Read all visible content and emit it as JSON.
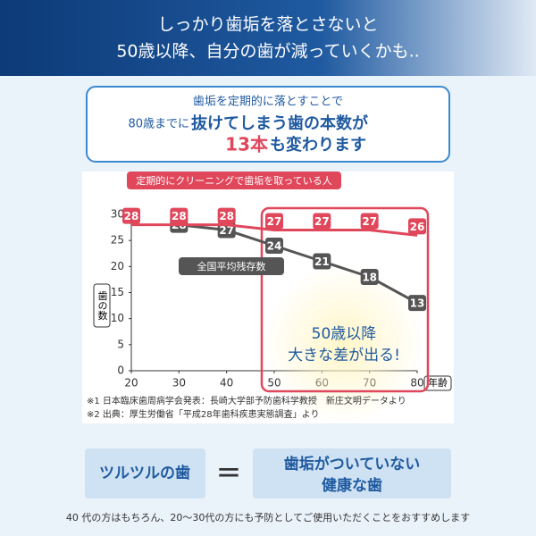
{
  "header": {
    "line1": "しっかり歯垢を落とさないと",
    "line2": "50歳以降、自分の歯が減っていくかも.."
  },
  "callout": {
    "line1": "歯垢を定期的に落とすことで",
    "line2a": "80歳までに",
    "line2b": "抜けてしまう歯の本数が",
    "line3a": "13本",
    "line3b": "も変わります"
  },
  "chart_data": {
    "type": "line",
    "x": [
      20,
      30,
      40,
      50,
      60,
      70,
      80
    ],
    "series": [
      {
        "name": "定期的にクリーニングで歯垢を取っている人",
        "color": "#e0475b",
        "values": [
          28,
          28,
          28,
          27,
          27,
          27,
          26
        ]
      },
      {
        "name": "全国平均残存数",
        "color": "#555555",
        "values": [
          null,
          28,
          27,
          24,
          21,
          18,
          13
        ]
      }
    ],
    "xlim": [
      20,
      80
    ],
    "xticks": [
      20,
      30,
      40,
      50,
      60,
      70,
      80
    ],
    "ylim": [
      0,
      30
    ],
    "yticks": [
      0,
      5,
      10,
      15,
      20,
      25,
      30
    ],
    "xlabel": "年齢",
    "ylabel": "歯の数",
    "annotation": {
      "line1": "50歳以降",
      "line2": "大きな差が出る!"
    }
  },
  "notes": [
    "※1 日本臨床歯周病学会発表：長崎大学部予防歯科学教授　新庄文明データより",
    "※2 出典：厚生労働省「平成28年歯科疾患実態調査」より"
  ],
  "bottom": {
    "left": "ツルツルの歯",
    "eq": "=",
    "right1": "歯垢がついていない",
    "right2": "健康な歯"
  },
  "footer": "40 代の方はもちろん、20～30代の方にも予防としてご使用いただくことをおすすめします"
}
